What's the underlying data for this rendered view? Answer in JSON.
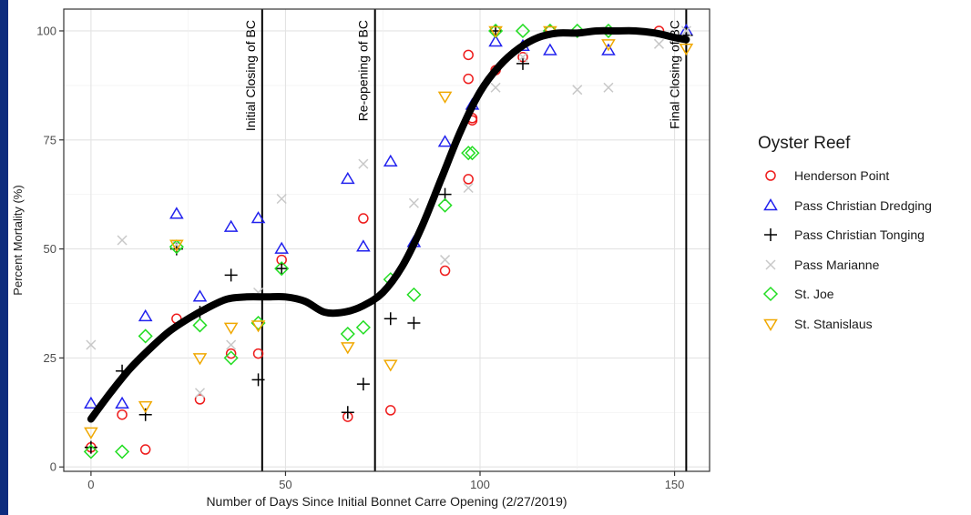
{
  "chart_data": {
    "type": "scatter",
    "title": "",
    "xlabel": "Number of Days Since Initial Bonnet Carre Opening (2/27/2019)",
    "ylabel": "Percent Mortality (%)",
    "xlim": [
      -7,
      159
    ],
    "ylim": [
      -1,
      105
    ],
    "xticks": [
      0,
      50,
      100,
      150
    ],
    "yticks": [
      0,
      25,
      50,
      75,
      100
    ],
    "grid": true,
    "legend_title": "Oyster Reef",
    "legend_position": "right",
    "vlines": [
      {
        "x": 44,
        "label": "Initial Closing of BC"
      },
      {
        "x": 73,
        "label": "Re-opening of BC"
      },
      {
        "x": 153,
        "label": "Final Closing of BC"
      }
    ],
    "smooth_curve": {
      "color": "#000000",
      "x": [
        0,
        5,
        10,
        15,
        20,
        25,
        30,
        35,
        40,
        45,
        50,
        55,
        60,
        65,
        70,
        75,
        80,
        85,
        90,
        95,
        100,
        105,
        110,
        115,
        120,
        125,
        130,
        135,
        140,
        145,
        150,
        153
      ],
      "y": [
        11,
        17,
        22.5,
        27,
        31,
        34,
        36.5,
        38.5,
        39,
        39,
        39,
        38,
        35.5,
        35.5,
        37,
        40,
        46,
        55,
        66,
        77,
        86,
        92,
        96,
        98.5,
        99.5,
        99.5,
        100,
        100,
        100,
        99.5,
        98.5,
        98
      ]
    },
    "series": [
      {
        "name": "Henderson Point",
        "color": "#ee1c1c",
        "marker": "circle",
        "x": [
          0,
          8,
          14,
          22,
          28,
          36,
          43,
          49,
          66,
          70,
          77,
          91,
          97,
          97,
          97,
          98,
          98,
          104,
          111,
          118,
          146
        ],
        "y": [
          4.5,
          12,
          4,
          34,
          15.5,
          26,
          26,
          47.5,
          11.5,
          57,
          13,
          45,
          66,
          89,
          94.5,
          79.5,
          80,
          91,
          94,
          100,
          100
        ]
      },
      {
        "name": "Pass Christian Dredging",
        "color": "#2222ee",
        "marker": "triangle-up",
        "x": [
          0,
          8,
          14,
          22,
          28,
          36,
          43,
          49,
          66,
          70,
          77,
          83,
          91,
          98,
          104,
          111,
          118,
          133,
          153
        ],
        "y": [
          14.5,
          14.5,
          34.5,
          58,
          39,
          55,
          57,
          50,
          66,
          50.5,
          70,
          51.5,
          74.5,
          83,
          97.5,
          96.5,
          95.5,
          95.5,
          100
        ]
      },
      {
        "name": "Pass Christian Tonging",
        "color": "#000000",
        "marker": "plus",
        "x": [
          0,
          8,
          14,
          22,
          28,
          36,
          43,
          49,
          66,
          70,
          77,
          83,
          91,
          104,
          111,
          153
        ],
        "y": [
          4.5,
          22,
          12,
          50,
          35.5,
          44,
          20,
          45.5,
          12.5,
          19,
          34,
          33,
          62.5,
          100,
          92.5,
          99
        ]
      },
      {
        "name": "Pass Marianne",
        "color": "#c8c8c8",
        "marker": "x",
        "x": [
          0,
          8,
          22,
          28,
          36,
          43,
          49,
          70,
          83,
          91,
          97,
          104,
          111,
          125,
          133,
          146,
          153
        ],
        "y": [
          28,
          52,
          51,
          17,
          28,
          40,
          61.5,
          69.5,
          60.5,
          47.5,
          64,
          87,
          94,
          86.5,
          87,
          97,
          100
        ]
      },
      {
        "name": "St. Joe",
        "color": "#22dd22",
        "marker": "diamond",
        "x": [
          0,
          8,
          14,
          22,
          28,
          36,
          43,
          49,
          66,
          70,
          77,
          83,
          91,
          97,
          98,
          104,
          111,
          118,
          125,
          133
        ],
        "y": [
          3.5,
          3.5,
          30,
          50.5,
          32.5,
          25,
          33,
          45.5,
          30.5,
          32,
          43,
          39.5,
          60,
          72,
          72,
          100,
          100,
          100,
          100,
          100
        ]
      },
      {
        "name": "St. Stanislaus",
        "color": "#f0a800",
        "marker": "triangle-down",
        "x": [
          0,
          14,
          22,
          28,
          36,
          43,
          66,
          77,
          91,
          104,
          118,
          133,
          153
        ],
        "y": [
          8,
          14,
          51,
          25,
          32,
          32.5,
          27.5,
          23.5,
          85,
          100,
          100,
          97,
          96
        ]
      }
    ]
  }
}
